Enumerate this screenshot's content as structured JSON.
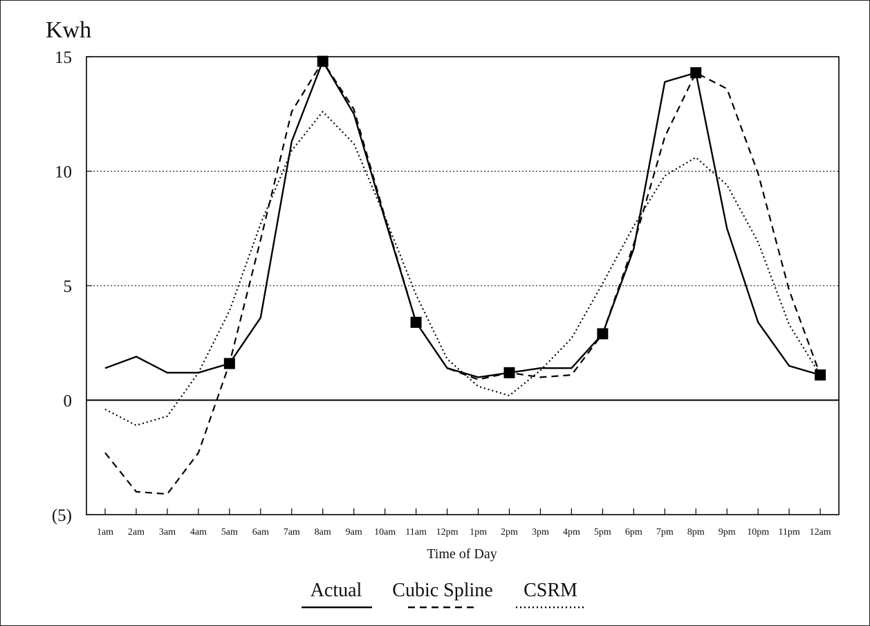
{
  "chart_data": {
    "type": "line",
    "ylabel": "Kwh",
    "xlabel": "Time of Day",
    "ylim": [
      -5,
      15
    ],
    "y_ticks": [
      15,
      10,
      5,
      0,
      -5
    ],
    "y_tick_labels": [
      "15",
      "10",
      "5",
      "0",
      "(5)"
    ],
    "y_gridlines": [
      10,
      5
    ],
    "grid": "dotted horizontal lines at 5 and 10; solid zero line",
    "legend_position": "bottom-center",
    "categories": [
      "1am",
      "2am",
      "3am",
      "4am",
      "5am",
      "6am",
      "7am",
      "8am",
      "9am",
      "10am",
      "11am",
      "12pm",
      "1pm",
      "2pm",
      "3pm",
      "4pm",
      "5pm",
      "6pm",
      "7pm",
      "8pm",
      "9pm",
      "10pm",
      "11pm",
      "12am"
    ],
    "series": [
      {
        "name": "Actual",
        "style": "solid",
        "color": "#000000",
        "values": [
          1.4,
          1.9,
          1.2,
          1.2,
          1.6,
          3.6,
          11.3,
          14.8,
          12.5,
          7.9,
          3.4,
          1.4,
          1.0,
          1.2,
          1.4,
          1.4,
          2.9,
          6.6,
          13.9,
          14.3,
          7.5,
          3.4,
          1.5,
          1.1
        ]
      },
      {
        "name": "Cubic Spline",
        "style": "dashed",
        "color": "#000000",
        "values": [
          -2.3,
          -4.0,
          -4.1,
          -2.3,
          1.6,
          7.0,
          12.6,
          14.8,
          12.7,
          8.0,
          3.4,
          1.4,
          0.9,
          1.2,
          1.0,
          1.1,
          2.9,
          6.8,
          11.5,
          14.3,
          13.6,
          9.9,
          4.8,
          1.1
        ]
      },
      {
        "name": "CSRM",
        "style": "dotted",
        "color": "#000000",
        "values": [
          -0.4,
          -1.1,
          -0.7,
          1.2,
          3.9,
          7.7,
          10.9,
          12.6,
          11.2,
          8.0,
          4.6,
          1.8,
          0.6,
          0.2,
          1.3,
          2.7,
          5.1,
          7.6,
          9.8,
          10.6,
          9.4,
          6.9,
          3.3,
          1.1
        ]
      }
    ],
    "markers": {
      "series": "Actual",
      "shape": "filled-square",
      "categories": [
        "5am",
        "8am",
        "11am",
        "2pm",
        "5pm",
        "8pm",
        "12am"
      ],
      "values": [
        1.6,
        14.8,
        3.4,
        1.2,
        2.9,
        14.3,
        1.1
      ]
    }
  }
}
